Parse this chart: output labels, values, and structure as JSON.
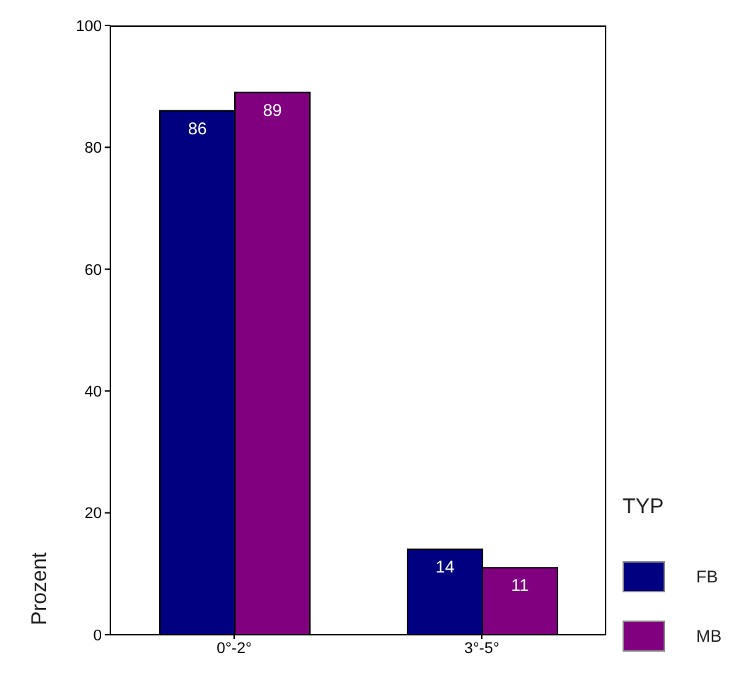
{
  "chart_data": {
    "type": "bar",
    "categories": [
      "0°-2°",
      "3°-5°"
    ],
    "ylabel": "Prozent",
    "legend_title": "TYP",
    "legend": "right",
    "data_labels": true,
    "ylim": [
      0,
      100
    ],
    "yticks": [
      0,
      20,
      40,
      60,
      80,
      100
    ],
    "grid": false,
    "series": [
      {
        "name": "FB",
        "color": "#000080",
        "values": [
          86,
          14
        ]
      },
      {
        "name": "MB",
        "color": "#800080",
        "values": [
          89,
          11
        ]
      }
    ]
  }
}
